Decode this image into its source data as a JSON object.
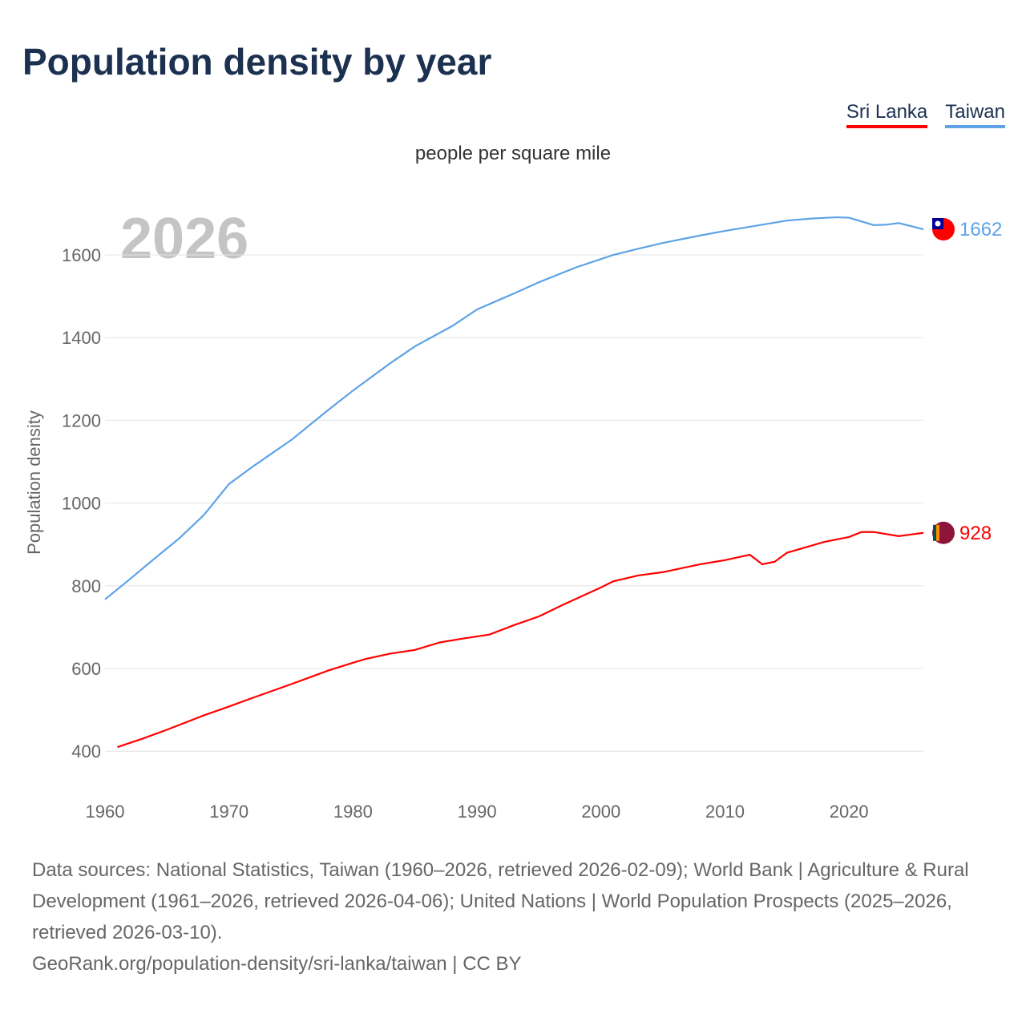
{
  "title": "Population density by year",
  "legend": [
    {
      "label": "Sri Lanka",
      "color": "#ff0000"
    },
    {
      "label": "Taiwan",
      "color": "#5ea3e6"
    }
  ],
  "unit_label": "people per square mile",
  "footer": {
    "sources": "Data sources: National Statistics, Taiwan (1960–2026, retrieved 2026-02-09); World Bank | Agriculture & Rural Development (1961–2026, retrieved 2026-04-06); United Nations | World Population Prospects (2025–2026, retrieved 2026-03-10).",
    "credit": "GeoRank.org/population-density/sri-lanka/taiwan | CC BY"
  },
  "chart_data": {
    "type": "line",
    "title": "Population density by year",
    "ylabel": "Population density",
    "xlabel": "",
    "year_watermark": "2026",
    "xlim": [
      1960,
      2026.5
    ],
    "ylim": [
      300,
      1700
    ],
    "yticks": [
      400,
      600,
      800,
      1000,
      1200,
      1400,
      1600
    ],
    "xticks": [
      1960,
      1970,
      1980,
      1990,
      2000,
      2010,
      2020
    ],
    "grid": true,
    "series": [
      {
        "name": "Taiwan",
        "color": "#5ea3e6",
        "end_label": "1662",
        "x": [
          1960,
          1962,
          1964,
          1966,
          1968,
          1970,
          1972,
          1975,
          1978,
          1980,
          1983,
          1985,
          1988,
          1990,
          1993,
          1995,
          1998,
          2000,
          2001,
          2003,
          2005,
          2008,
          2010,
          2013,
          2015,
          2017,
          2019,
          2020,
          2022,
          2023,
          2024,
          2026
        ],
        "y": [
          767,
          816,
          866,
          915,
          972,
          1046,
          1090,
          1152,
          1225,
          1272,
          1338,
          1379,
          1428,
          1468,
          1507,
          1534,
          1570,
          1590,
          1600,
          1615,
          1629,
          1647,
          1658,
          1673,
          1683,
          1688,
          1691,
          1690,
          1672,
          1673,
          1677,
          1662
        ]
      },
      {
        "name": "Sri Lanka",
        "color": "#ff0000",
        "end_label": "928",
        "x": [
          1961,
          1963,
          1965,
          1968,
          1970,
          1972,
          1975,
          1978,
          1980,
          1981,
          1983,
          1985,
          1987,
          1989,
          1991,
          1993,
          1995,
          1997,
          2000,
          2001,
          2003,
          2005,
          2008,
          2010,
          2012,
          2013,
          2014,
          2015,
          2018,
          2020,
          2021,
          2022,
          2024,
          2026
        ],
        "y": [
          410,
          430,
          452,
          487,
          508,
          530,
          562,
          595,
          614,
          623,
          636,
          645,
          663,
          673,
          682,
          705,
          726,
          755,
          796,
          811,
          825,
          833,
          852,
          862,
          875,
          852,
          858,
          880,
          906,
          918,
          930,
          930,
          920,
          928
        ]
      }
    ]
  }
}
